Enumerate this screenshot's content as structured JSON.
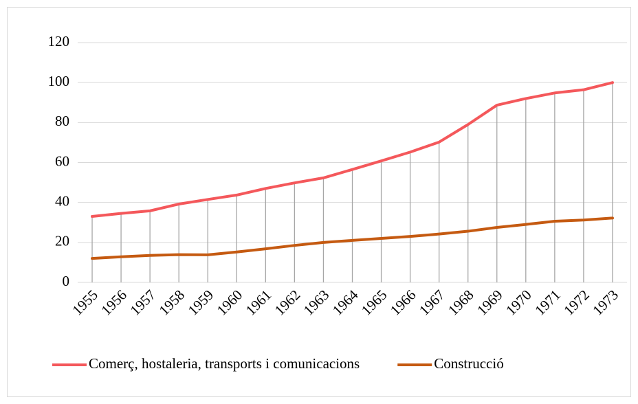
{
  "chart_data": {
    "type": "line",
    "categories": [
      "1955",
      "1956",
      "1957",
      "1958",
      "1959",
      "1960",
      "1961",
      "1962",
      "1963",
      "1964",
      "1965",
      "1966",
      "1967",
      "1968",
      "1969",
      "1970",
      "1971",
      "1972",
      "1973"
    ],
    "series": [
      {
        "name": "Comerç, hostaleria, transports i comunicacions",
        "color": "#f4585b",
        "values": [
          33,
          34.5,
          35.8,
          39.2,
          41.5,
          43.7,
          47,
          49.8,
          52.3,
          56.5,
          60.8,
          65.2,
          70.2,
          79,
          88.7,
          92,
          94.8,
          96.4,
          100
        ]
      },
      {
        "name": "Construcció",
        "color": "#c55a11",
        "values": [
          12,
          12.8,
          13.5,
          13.9,
          13.8,
          15.2,
          16.8,
          18.5,
          20,
          21,
          22,
          23,
          24.2,
          25.6,
          27.5,
          29,
          30.6,
          31.2,
          32.2
        ]
      }
    ],
    "ylim": [
      0,
      120
    ],
    "yticks": [
      0,
      20,
      40,
      60,
      80,
      100,
      120
    ],
    "grid": true,
    "drop_lines": true,
    "legend": "bottom"
  }
}
